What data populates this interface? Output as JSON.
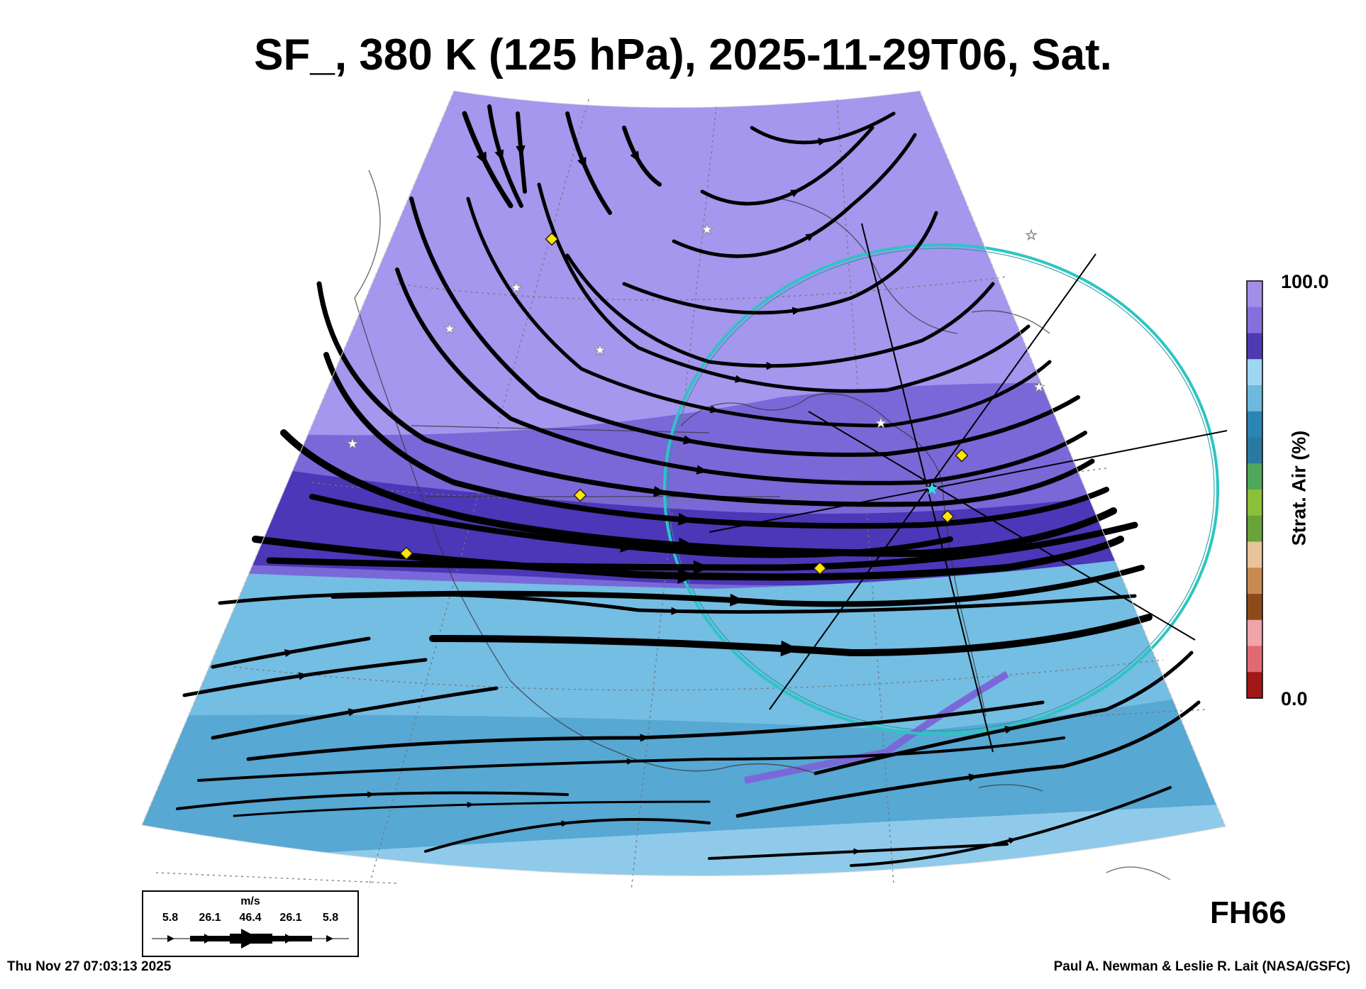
{
  "title": "SF_, 380 K (125 hPa), 2025-11-29T06, Sat.",
  "forecast_hour": "FH66",
  "run_time": "Thu Nov 27 07:03:13 2025",
  "credit": "Paul A. Newman & Leslie R. Lait (NASA/GSFC)",
  "colorbar": {
    "title": "Strat. Air (%)",
    "max_label": "100.0",
    "min_label": "0.0",
    "colors": [
      "#a28ee8",
      "#8470dc",
      "#4f3ab4",
      "#9fd6f2",
      "#6fb8de",
      "#2b86b4",
      "#2a7aa0",
      "#4fa85a",
      "#8cbf3a",
      "#6aa33a",
      "#e7c49a",
      "#c98a52",
      "#8e4a1a",
      "#f0a3a8",
      "#e06a72",
      "#a01818"
    ]
  },
  "wind_legend": {
    "unit": "m/s",
    "values": [
      "5.8",
      "26.1",
      "46.4",
      "26.1",
      "5.8"
    ]
  },
  "map_colors": {
    "strat_high": "#a596ee",
    "strat_mid": "#7a68d8",
    "strat_core": "#4b37b8",
    "trop_light": "#a6d8f4",
    "trop_mid": "#74bde3",
    "trop_dark": "#3f97c6",
    "circle": "#2ec4c4",
    "marker": "#ffe600"
  }
}
